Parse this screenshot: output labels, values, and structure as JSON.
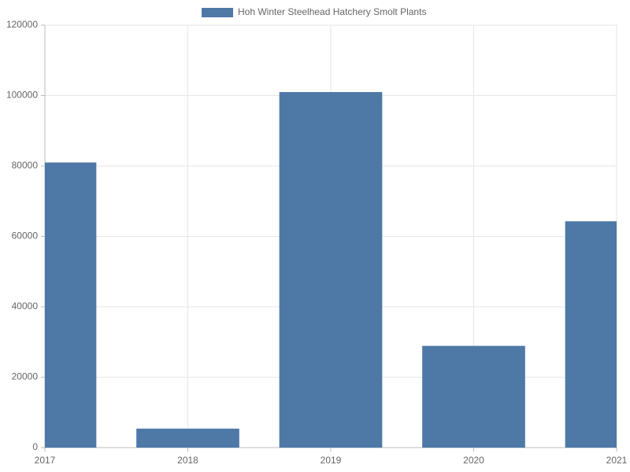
{
  "chart_data": {
    "type": "bar",
    "legend_label": "Hoh Winter Steelhead Hatchery Smolt Plants",
    "x": [
      2017,
      2018,
      2019,
      2020,
      2021
    ],
    "values": [
      81000,
      5400,
      101000,
      28900,
      64300
    ],
    "color": "#4e79a7",
    "xlim": [
      2017,
      2021
    ],
    "xticks": [
      2017,
      2018,
      2019,
      2020,
      2021
    ],
    "ylim": [
      0,
      120000
    ],
    "yticks": [
      0,
      20000,
      40000,
      60000,
      80000,
      100000,
      120000
    ],
    "grid": true,
    "legend": "top"
  }
}
